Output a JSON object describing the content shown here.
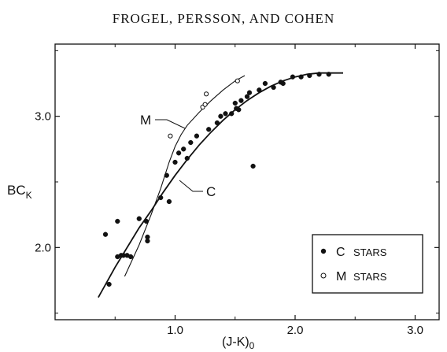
{
  "header": {
    "text": "FROGEL, PERSSON, AND COHEN"
  },
  "chart_data": {
    "type": "scatter",
    "title": "",
    "xlabel": "(J-K)",
    "xlabel_subscript": "0",
    "ylabel": "BC",
    "ylabel_subscript": "K",
    "xlim": [
      0.0,
      3.2
    ],
    "ylim": [
      1.45,
      3.55
    ],
    "x_ticks": [
      1.0,
      2.0,
      3.0
    ],
    "x_tick_labels": [
      "1.0",
      "2.0",
      "3.0"
    ],
    "y_ticks": [
      2.0,
      3.0
    ],
    "y_tick_labels": [
      "2.0",
      "3.0"
    ],
    "grid": false,
    "legend_position": "bottom-right",
    "legend": [
      {
        "marker": "filled",
        "label_main": "C",
        "label_rest": "STARS"
      },
      {
        "marker": "open",
        "label_main": "M",
        "label_rest": "STARS"
      }
    ],
    "series": [
      {
        "name": "C STARS",
        "marker": "filled",
        "points": [
          [
            0.42,
            2.1
          ],
          [
            0.45,
            1.72
          ],
          [
            0.52,
            2.2
          ],
          [
            0.52,
            1.93
          ],
          [
            0.55,
            1.94
          ],
          [
            0.57,
            1.94
          ],
          [
            0.6,
            1.94
          ],
          [
            0.63,
            1.93
          ],
          [
            0.7,
            2.22
          ],
          [
            0.76,
            2.2
          ],
          [
            0.77,
            2.08
          ],
          [
            0.77,
            2.05
          ],
          [
            0.88,
            2.38
          ],
          [
            0.93,
            2.55
          ],
          [
            0.95,
            2.35
          ],
          [
            1.0,
            2.65
          ],
          [
            1.03,
            2.72
          ],
          [
            1.07,
            2.75
          ],
          [
            1.1,
            2.68
          ],
          [
            1.13,
            2.8
          ],
          [
            1.18,
            2.85
          ],
          [
            1.28,
            2.9
          ],
          [
            1.35,
            2.95
          ],
          [
            1.38,
            3.0
          ],
          [
            1.42,
            3.02
          ],
          [
            1.47,
            3.02
          ],
          [
            1.5,
            3.1
          ],
          [
            1.51,
            3.06
          ],
          [
            1.53,
            3.05
          ],
          [
            1.55,
            3.12
          ],
          [
            1.6,
            3.15
          ],
          [
            1.62,
            3.18
          ],
          [
            1.65,
            2.62
          ],
          [
            1.7,
            3.2
          ],
          [
            1.75,
            3.25
          ],
          [
            1.82,
            3.22
          ],
          [
            1.88,
            3.26
          ],
          [
            1.9,
            3.25
          ],
          [
            1.98,
            3.3
          ],
          [
            2.05,
            3.3
          ],
          [
            2.12,
            3.31
          ],
          [
            2.2,
            3.32
          ],
          [
            2.28,
            3.32
          ]
        ]
      },
      {
        "name": "M STARS",
        "marker": "open",
        "points": [
          [
            0.96,
            2.85
          ],
          [
            1.23,
            3.07
          ],
          [
            1.25,
            3.09
          ],
          [
            1.26,
            3.17
          ],
          [
            1.52,
            3.27
          ]
        ]
      }
    ],
    "curves": [
      {
        "label": "C",
        "style": "thick",
        "points": [
          [
            0.36,
            1.62
          ],
          [
            0.5,
            1.85
          ],
          [
            0.7,
            2.15
          ],
          [
            0.8,
            2.28
          ],
          [
            0.9,
            2.42
          ],
          [
            1.0,
            2.55
          ],
          [
            1.1,
            2.67
          ],
          [
            1.2,
            2.78
          ],
          [
            1.3,
            2.88
          ],
          [
            1.4,
            2.97
          ],
          [
            1.5,
            3.05
          ],
          [
            1.6,
            3.12
          ],
          [
            1.7,
            3.18
          ],
          [
            1.8,
            3.23
          ],
          [
            1.9,
            3.27
          ],
          [
            2.0,
            3.3
          ],
          [
            2.1,
            3.32
          ],
          [
            2.2,
            3.33
          ],
          [
            2.3,
            3.33
          ],
          [
            2.4,
            3.33
          ]
        ]
      },
      {
        "label": "M",
        "style": "thin",
        "points": [
          [
            0.58,
            1.78
          ],
          [
            0.7,
            2.02
          ],
          [
            0.8,
            2.25
          ],
          [
            0.88,
            2.45
          ],
          [
            0.95,
            2.65
          ],
          [
            1.0,
            2.77
          ],
          [
            1.05,
            2.86
          ],
          [
            1.1,
            2.93
          ],
          [
            1.2,
            3.03
          ],
          [
            1.3,
            3.12
          ],
          [
            1.4,
            3.2
          ],
          [
            1.5,
            3.27
          ],
          [
            1.58,
            3.31
          ]
        ]
      }
    ]
  }
}
